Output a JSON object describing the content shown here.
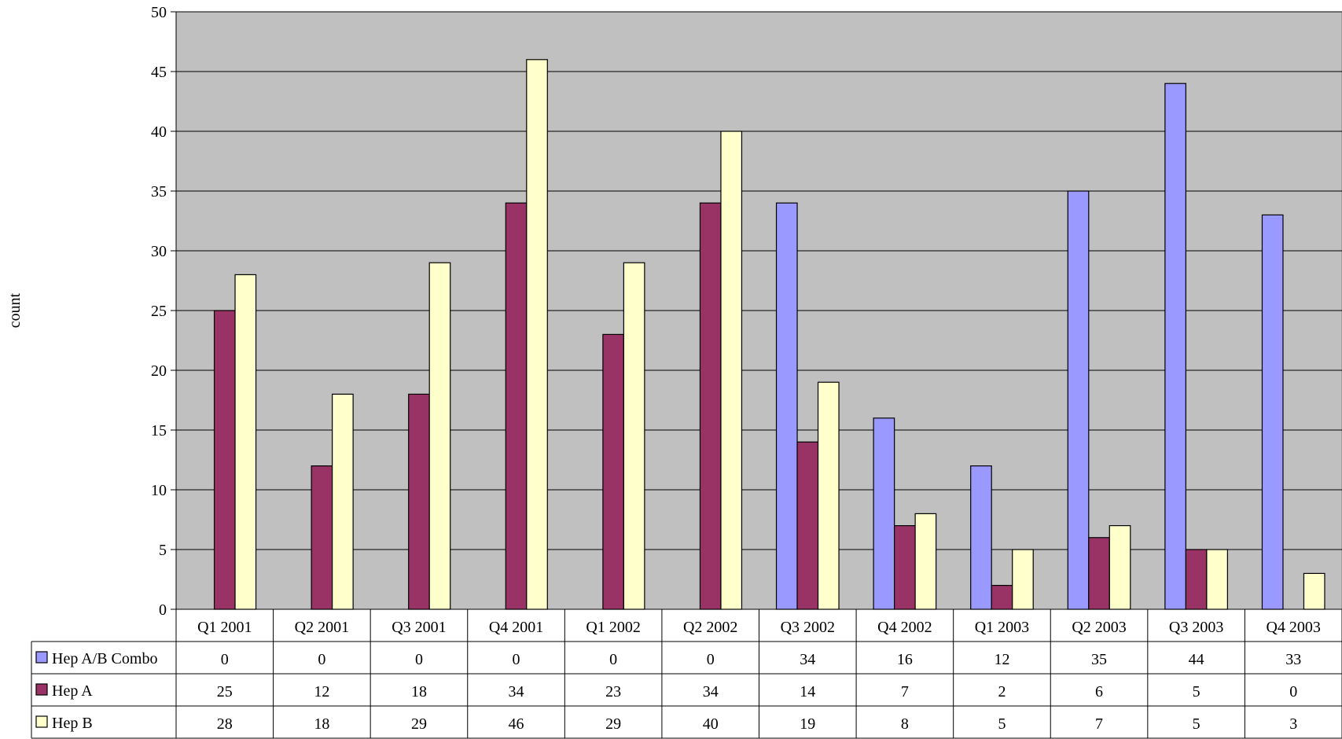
{
  "chart_data": {
    "type": "bar",
    "ylabel": "count",
    "ylim": [
      0,
      50
    ],
    "ytick_step": 5,
    "categories": [
      "Q1 2001",
      "Q2 2001",
      "Q3 2001",
      "Q4 2001",
      "Q1 2002",
      "Q2 2002",
      "Q3 2002",
      "Q4 2002",
      "Q1 2003",
      "Q2 2003",
      "Q3 2003",
      "Q4 2003"
    ],
    "series": [
      {
        "name": "Hep A/B Combo",
        "color": "#9999ff",
        "values": [
          0,
          0,
          0,
          0,
          0,
          0,
          34,
          16,
          12,
          35,
          44,
          33
        ]
      },
      {
        "name": "Hep A",
        "color": "#993366",
        "values": [
          25,
          12,
          18,
          34,
          23,
          34,
          14,
          7,
          2,
          6,
          5,
          0
        ]
      },
      {
        "name": "Hep B",
        "color": "#ffffcc",
        "values": [
          28,
          18,
          29,
          46,
          29,
          40,
          19,
          8,
          5,
          7,
          5,
          3
        ]
      }
    ],
    "plot_background": "#c0c0c0",
    "grid": true,
    "data_table": true
  }
}
